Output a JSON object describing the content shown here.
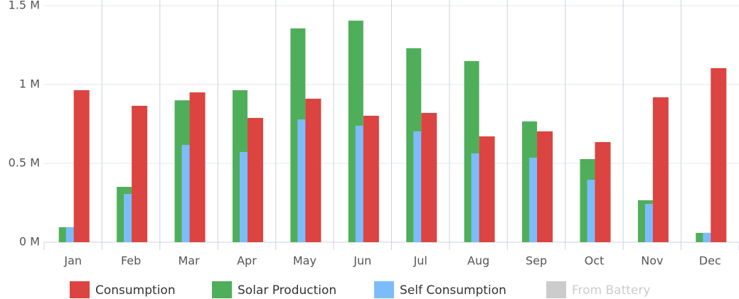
{
  "chart_data": {
    "type": "bar",
    "categories": [
      "Jan",
      "Feb",
      "Mar",
      "Apr",
      "May",
      "Jun",
      "Jul",
      "Aug",
      "Sep",
      "Oct",
      "Nov",
      "Dec"
    ],
    "series": [
      {
        "name": "Consumption",
        "color": "#db4440",
        "values": [
          0.964,
          0.865,
          0.95,
          0.788,
          0.91,
          0.802,
          0.82,
          0.671,
          0.703,
          0.635,
          0.919,
          1.104
        ]
      },
      {
        "name": "Solar Production",
        "color": "#4fae5a",
        "values": [
          0.095,
          0.351,
          0.9,
          0.964,
          1.356,
          1.405,
          1.23,
          1.149,
          0.766,
          0.527,
          0.266,
          0.059
        ]
      },
      {
        "name": "Self Consumption",
        "color": "#7dbcfb",
        "values": [
          0.095,
          0.306,
          0.617,
          0.572,
          0.779,
          0.739,
          0.703,
          0.563,
          0.536,
          0.396,
          0.243,
          0.059
        ]
      },
      {
        "name": "From Battery",
        "color": "#cccccc",
        "visible": false
      }
    ],
    "ylim": [
      0,
      1.5
    ],
    "yticks": [
      {
        "value": 0,
        "label": "0 M"
      },
      {
        "value": 0.5,
        "label": "0.5 M"
      },
      {
        "value": 1,
        "label": "1 M"
      },
      {
        "value": 1.5,
        "label": "1.5 M"
      }
    ],
    "grid": true
  }
}
